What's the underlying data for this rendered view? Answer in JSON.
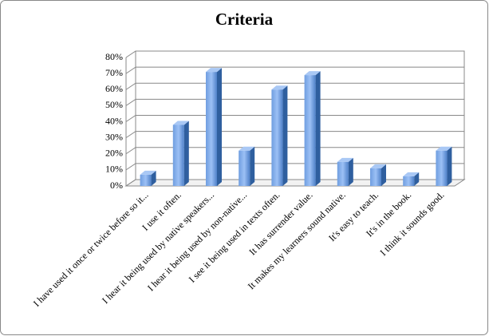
{
  "chart_data": {
    "type": "bar",
    "title": "Criteria",
    "categories": [
      "I have used it once or twice before so it...",
      "I use it often.",
      "I hear it being used by native speakers...",
      "I hear it being used by non-native...",
      "I see it being used in texts often.",
      "It has surrender value.",
      "It makes my learners sound native.",
      "It's easy to teach.",
      "It's in the book.",
      "I think it sounds good."
    ],
    "values": [
      7,
      38,
      71,
      22,
      60,
      69,
      15,
      11,
      6,
      22
    ],
    "color": "#4f81bd",
    "ylim": [
      0,
      80
    ],
    "yticks": [
      {
        "value": 0,
        "label": "0%"
      },
      {
        "value": 10,
        "label": "10%"
      },
      {
        "value": 20,
        "label": "20%"
      },
      {
        "value": 30,
        "label": "30%"
      },
      {
        "value": 40,
        "label": "40%"
      },
      {
        "value": 50,
        "label": "50%"
      },
      {
        "value": 60,
        "label": "60%"
      },
      {
        "value": 70,
        "label": "70%"
      },
      {
        "value": 80,
        "label": "80%"
      }
    ],
    "grid": true
  }
}
